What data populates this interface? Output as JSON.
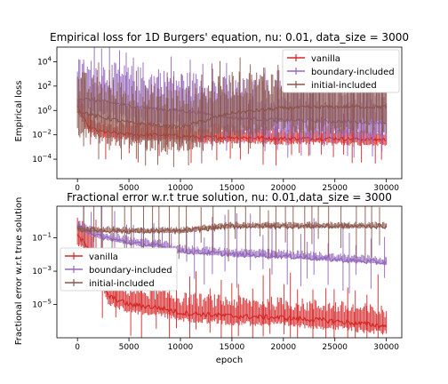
{
  "chart_data": [
    {
      "type": "line",
      "title": "Empirical loss for 1D Burgers' equation, nu: 0.01, data_size = 3000",
      "xlabel": "",
      "ylabel": "Empirical loss",
      "yscale": "log",
      "xlim": [
        -2000,
        31500
      ],
      "ylim_log10": [
        -5.6,
        5.2
      ],
      "x_ticks": [
        0,
        5000,
        10000,
        15000,
        20000,
        25000,
        30000
      ],
      "y_ticks": [
        {
          "value_log10": 4,
          "label": "10^4"
        },
        {
          "value_log10": 2,
          "label": "10^2"
        },
        {
          "value_log10": 0,
          "label": "10^0"
        },
        {
          "value_log10": -2,
          "label": "10^-2"
        },
        {
          "value_log10": -4,
          "label": "10^-4"
        }
      ],
      "legend_position": "top-right",
      "series": [
        {
          "name": "vanilla",
          "color": "#d62728",
          "points": [
            [
              0,
              0.3
            ],
            [
              1000,
              -1.3
            ],
            [
              2000,
              -1.7
            ],
            [
              4000,
              -1.9
            ],
            [
              6000,
              -2.0
            ],
            [
              8000,
              -2.0
            ],
            [
              10000,
              -2.1
            ],
            [
              12000,
              -2.2
            ],
            [
              15000,
              -2.2
            ],
            [
              20000,
              -2.3
            ],
            [
              25000,
              -2.3
            ],
            [
              30000,
              -2.4
            ]
          ],
          "band_log10": [
            0.4,
            0.8
          ]
        },
        {
          "name": "boundary-included",
          "color": "#9467bd",
          "points": [
            [
              0,
              1.0
            ],
            [
              2000,
              0.8
            ],
            [
              5000,
              0.4
            ],
            [
              8000,
              0.1
            ],
            [
              10000,
              0.0
            ],
            [
              12000,
              -0.2
            ],
            [
              15000,
              -0.6
            ],
            [
              20000,
              -0.8
            ],
            [
              25000,
              -0.9
            ],
            [
              30000,
              -1.0
            ]
          ],
          "band_log10": [
            1.2,
            2.4
          ]
        },
        {
          "name": "initial-included",
          "color": "#8c564b",
          "points": [
            [
              0,
              0.0
            ],
            [
              2000,
              -0.5
            ],
            [
              5000,
              -1.0
            ],
            [
              10000,
              -1.4
            ],
            [
              15000,
              -0.2
            ],
            [
              20000,
              0.2
            ],
            [
              25000,
              0.3
            ],
            [
              30000,
              0.3
            ]
          ],
          "band_log10": [
            1.6,
            2.4
          ]
        }
      ]
    },
    {
      "type": "line",
      "title": "Fractional error w.r.t true solution, nu: 0.01,data_size = 3000",
      "xlabel": "epoch",
      "ylabel": "Fractional error w.r.t true solution",
      "yscale": "log",
      "xlim": [
        -2000,
        31500
      ],
      "ylim_log10": [
        -7.0,
        0.9
      ],
      "x_ticks": [
        0,
        5000,
        10000,
        15000,
        20000,
        25000,
        30000
      ],
      "y_ticks": [
        {
          "value_log10": -1,
          "label": "10^-1"
        },
        {
          "value_log10": -3,
          "label": "10^-3"
        },
        {
          "value_log10": -5,
          "label": "10^-5"
        }
      ],
      "legend_position": "center-left",
      "series": [
        {
          "name": "vanilla",
          "color": "#d62728",
          "points": [
            [
              0,
              -0.9
            ],
            [
              1500,
              -1.8
            ],
            [
              2000,
              -3.0
            ],
            [
              3000,
              -4.5
            ],
            [
              5000,
              -5.0
            ],
            [
              8000,
              -5.2
            ],
            [
              10000,
              -5.5
            ],
            [
              15000,
              -5.7
            ],
            [
              20000,
              -5.8
            ],
            [
              25000,
              -6.0
            ],
            [
              30000,
              -6.3
            ]
          ],
          "band_log10": [
            0.4,
            0.9
          ]
        },
        {
          "name": "boundary-included",
          "color": "#9467bd",
          "points": [
            [
              0,
              -0.3
            ],
            [
              2000,
              -0.9
            ],
            [
              5000,
              -1.3
            ],
            [
              8000,
              -1.5
            ],
            [
              10000,
              -1.8
            ],
            [
              15000,
              -2.0
            ],
            [
              20000,
              -2.1
            ],
            [
              25000,
              -2.3
            ],
            [
              30000,
              -2.5
            ]
          ],
          "band_log10": [
            0.1,
            0.3
          ]
        },
        {
          "name": "initial-included",
          "color": "#8c564b",
          "points": [
            [
              0,
              -0.5
            ],
            [
              5000,
              -0.6
            ],
            [
              10000,
              -0.6
            ],
            [
              15000,
              -0.3
            ],
            [
              20000,
              -0.3
            ],
            [
              25000,
              -0.3
            ],
            [
              30000,
              -0.3
            ]
          ],
          "band_log10": [
            0.1,
            0.2
          ]
        }
      ]
    }
  ]
}
